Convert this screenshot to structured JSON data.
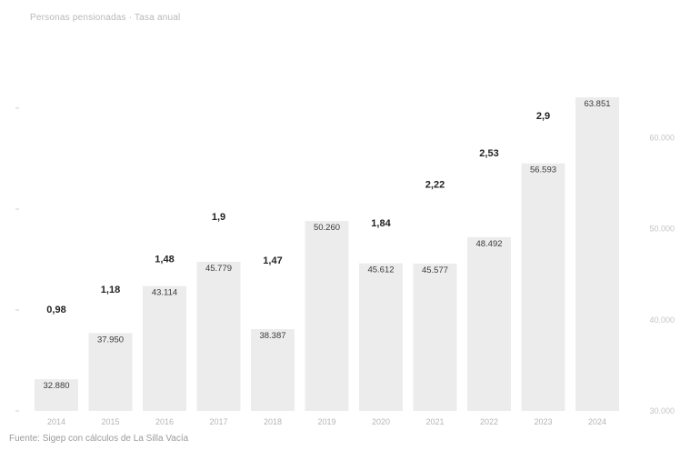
{
  "subtitle": "Personas pensionadas · Tasa anual",
  "source": "Fuente: Sigep con cálculos de La Silla Vacía",
  "chart_data": {
    "type": "bar",
    "categories": [
      "2014",
      "2015",
      "2016",
      "2017",
      "2018",
      "2019",
      "2020",
      "2021",
      "2022",
      "2023",
      "2024"
    ],
    "series": [
      {
        "values": [
          32880,
          37950,
          43114,
          45779,
          38387,
          50260,
          45612,
          45577,
          48492,
          56593,
          63851
        ]
      }
    ],
    "value_labels": [
      "32.880",
      "37.950",
      "43.114",
      "45.779",
      "38.387",
      "50.260",
      "45.612",
      "45.577",
      "48.492",
      "56.593",
      "63.851"
    ],
    "secondary_values": [
      0.98,
      1.18,
      1.48,
      1.9,
      1.47,
      null,
      1.84,
      2.22,
      2.53,
      2.9,
      null
    ],
    "secondary_labels": [
      "0,98",
      "1,18",
      "1,48",
      "1,9",
      "1,47",
      "",
      "1,84",
      "2,22",
      "2,53",
      "2,9",
      ""
    ],
    "y_right_ticks": [
      30000,
      40000,
      50000,
      60000
    ],
    "y_right_tick_labels": [
      "30.000",
      "40.000",
      "50.000",
      "60.000"
    ],
    "ylim_right": [
      30000,
      65000
    ],
    "ylim_left": [
      0,
      3.2
    ],
    "grid": false,
    "colors": {
      "bar": "#ececec",
      "value_text": "#3a3a3a",
      "pct_text": "#222222",
      "tick_text": "#b5b5b5"
    }
  }
}
